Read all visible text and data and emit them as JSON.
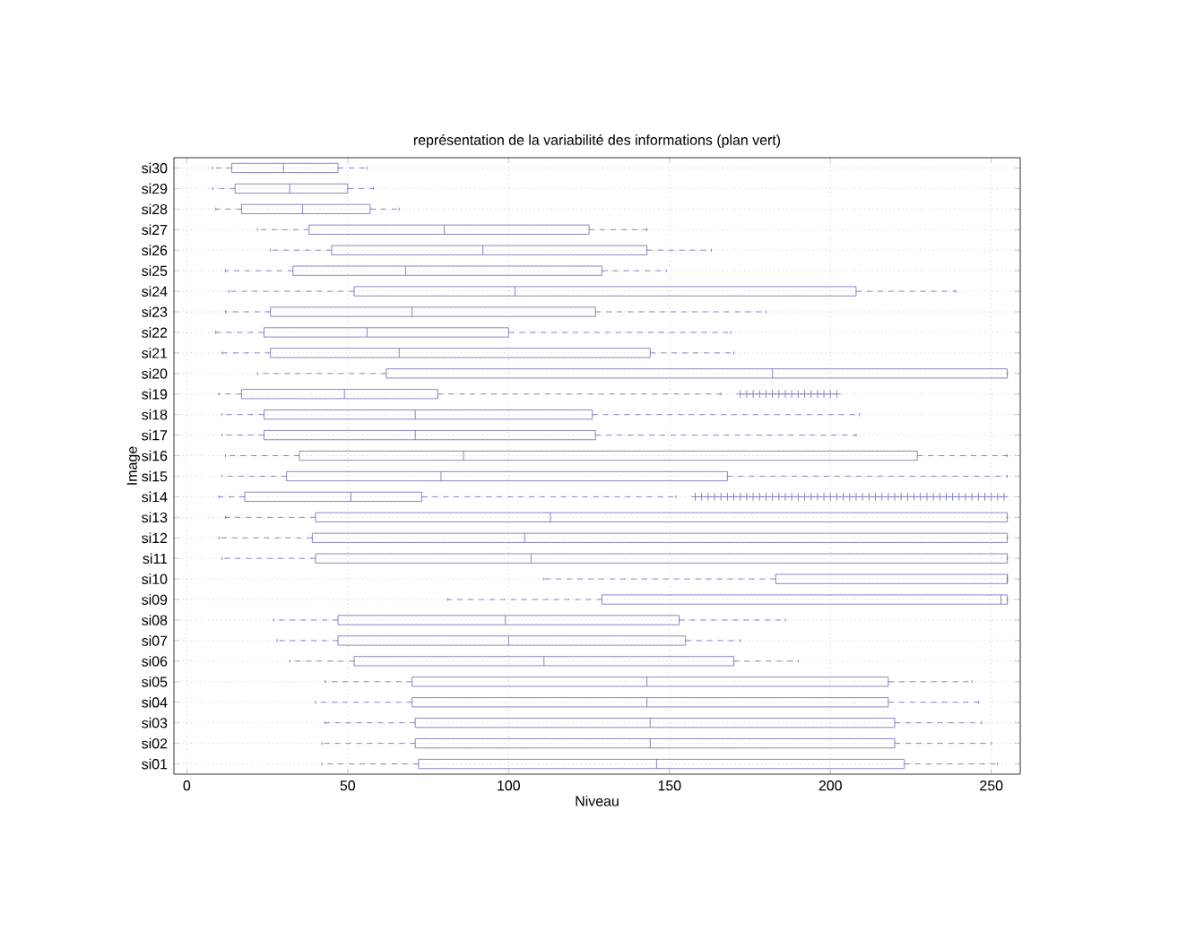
{
  "chart_data": {
    "type": "box",
    "orientation": "horizontal",
    "title": "représentation de la variabilité des informations (plan vert)",
    "xlabel": "Niveau",
    "ylabel": "Image",
    "color": "#6a6ab0",
    "grid": true,
    "categories": [
      "si30",
      "si29",
      "si28",
      "si27",
      "si26",
      "si25",
      "si24",
      "si23",
      "si22",
      "si21",
      "si20",
      "si19",
      "si18",
      "si17",
      "si16",
      "si15",
      "si14",
      "si13",
      "si12",
      "si11",
      "si10",
      "si09",
      "si08",
      "si07",
      "si06",
      "si05",
      "si04",
      "si03",
      "si02",
      "si01"
    ],
    "boxes": [
      {
        "low": 8,
        "q1": 14,
        "median": 30,
        "q3": 47,
        "high": 56
      },
      {
        "low": 8,
        "q1": 15,
        "median": 32,
        "q3": 50,
        "high": 58
      },
      {
        "low": 9,
        "q1": 17,
        "median": 36,
        "q3": 57,
        "high": 66
      },
      {
        "low": 22,
        "q1": 38,
        "median": 80,
        "q3": 125,
        "high": 143
      },
      {
        "low": 26,
        "q1": 45,
        "median": 92,
        "q3": 143,
        "high": 163
      },
      {
        "low": 12,
        "q1": 33,
        "median": 68,
        "q3": 129,
        "high": 149
      },
      {
        "low": 13,
        "q1": 52,
        "median": 102,
        "q3": 208,
        "high": 239
      },
      {
        "low": 12,
        "q1": 26,
        "median": 70,
        "q3": 127,
        "high": 180
      },
      {
        "low": 9,
        "q1": 24,
        "median": 56,
        "q3": 100,
        "high": 169
      },
      {
        "low": 11,
        "q1": 26,
        "median": 66,
        "q3": 144,
        "high": 170
      },
      {
        "low": 22,
        "q1": 62,
        "median": 182,
        "q3": 255,
        "high": 255
      },
      {
        "low": 10,
        "q1": 17,
        "median": 49,
        "q3": 78,
        "high": 166,
        "outliers": [
          172,
          174,
          176,
          178,
          180,
          182,
          184,
          186,
          188,
          190,
          192,
          194,
          196,
          198,
          200,
          202
        ]
      },
      {
        "low": 11,
        "q1": 24,
        "median": 71,
        "q3": 126,
        "high": 209
      },
      {
        "low": 11,
        "q1": 24,
        "median": 71,
        "q3": 127,
        "high": 208
      },
      {
        "low": 12,
        "q1": 35,
        "median": 86,
        "q3": 227,
        "high": 255
      },
      {
        "low": 11,
        "q1": 31,
        "median": 79,
        "q3": 168,
        "high": 255
      },
      {
        "low": 10,
        "q1": 18,
        "median": 51,
        "q3": 73,
        "high": 152,
        "outliers": [
          158,
          160,
          162,
          164,
          166,
          168,
          170,
          172,
          174,
          176,
          178,
          180,
          182,
          184,
          186,
          188,
          190,
          192,
          194,
          196,
          198,
          200,
          202,
          204,
          206,
          208,
          210,
          212,
          214,
          216,
          218,
          220,
          222,
          224,
          226,
          228,
          230,
          232,
          234,
          236,
          238,
          240,
          242,
          244,
          246,
          248,
          250,
          252,
          254
        ]
      },
      {
        "low": 12,
        "q1": 40,
        "median": 113,
        "q3": 255,
        "high": 255
      },
      {
        "low": 10,
        "q1": 39,
        "median": 105,
        "q3": 255,
        "high": 255
      },
      {
        "low": 11,
        "q1": 40,
        "median": 107,
        "q3": 255,
        "high": 255
      },
      {
        "low": 111,
        "q1": 183,
        "median": 255,
        "q3": 255,
        "high": 255
      },
      {
        "low": 81,
        "q1": 129,
        "median": 253,
        "q3": 255,
        "high": 255
      },
      {
        "low": 27,
        "q1": 47,
        "median": 99,
        "q3": 153,
        "high": 186
      },
      {
        "low": 28,
        "q1": 47,
        "median": 100,
        "q3": 155,
        "high": 172
      },
      {
        "low": 32,
        "q1": 52,
        "median": 111,
        "q3": 170,
        "high": 190
      },
      {
        "low": 43,
        "q1": 70,
        "median": 143,
        "q3": 218,
        "high": 244
      },
      {
        "low": 40,
        "q1": 70,
        "median": 143,
        "q3": 218,
        "high": 246
      },
      {
        "low": 43,
        "q1": 71,
        "median": 144,
        "q3": 220,
        "high": 247
      },
      {
        "low": 42,
        "q1": 71,
        "median": 144,
        "q3": 220,
        "high": 250
      },
      {
        "low": 42,
        "q1": 72,
        "median": 146,
        "q3": 223,
        "high": 252
      }
    ],
    "xlim": [
      -4,
      259
    ],
    "xticks": [
      0,
      50,
      100,
      150,
      200,
      250
    ]
  }
}
